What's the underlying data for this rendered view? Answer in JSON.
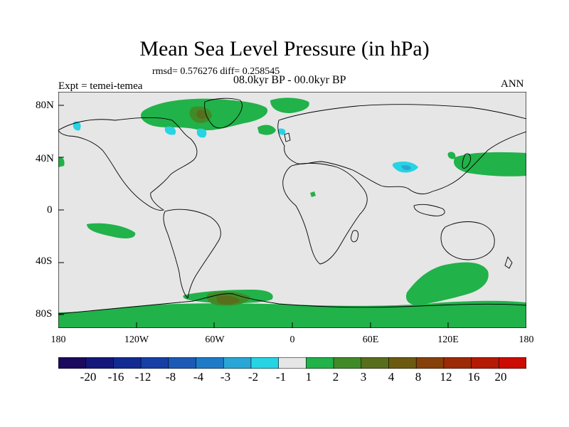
{
  "title": "Mean Sea Level Pressure (in hPa)",
  "stats": "rmsd= 0.576276 diff= 0.258545",
  "period": "08.0kyr BP - 00.0kyr BP",
  "experiment": "Expt = temei-temea",
  "season": "ANN",
  "lat_labels": [
    "80N",
    "40N",
    "0",
    "40S",
    "80S"
  ],
  "lon_labels": [
    "180",
    "120W",
    "60W",
    "0",
    "60E",
    "120E",
    "180"
  ],
  "colorbar": {
    "labels": [
      "-20",
      "-16",
      "-12",
      "-8",
      "-4",
      "-3",
      "-2",
      "-1",
      "1",
      "2",
      "3",
      "4",
      "8",
      "12",
      "16",
      "20"
    ],
    "colors": [
      "#1c0a5e",
      "#15187a",
      "#122a92",
      "#1640a6",
      "#1c5ab6",
      "#1f7bc8",
      "#2aa6d6",
      "#26d4e4",
      "#e6e6e6",
      "#21b24a",
      "#418a28",
      "#586e1c",
      "#6c5a10",
      "#86400a",
      "#9c2a06",
      "#b41a04",
      "#cc0c02"
    ]
  },
  "colors": {
    "background": "#e6e6e6",
    "positive_1_2": "#21b24a",
    "positive_2_3": "#418a28",
    "positive_3_4": "#586e1c",
    "negative_2_1": "#26d4e4",
    "negative_3_2": "#2aa6d6"
  }
}
